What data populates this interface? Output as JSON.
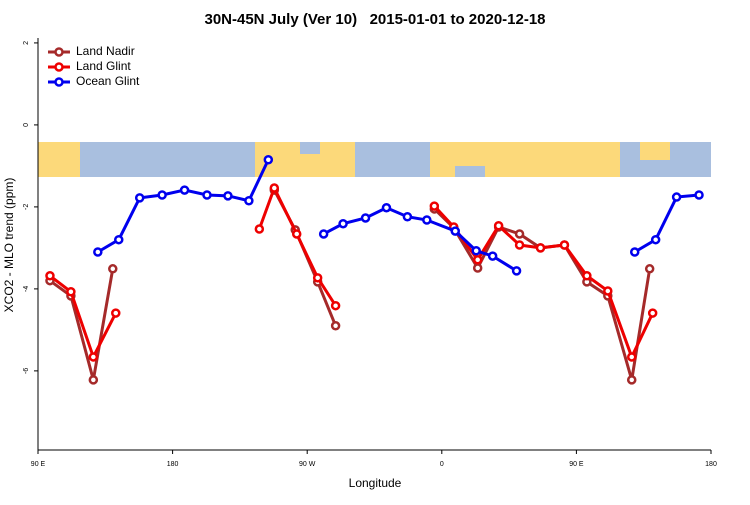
{
  "chart_data": {
    "type": "line",
    "title": "30N-45N July (Ver 10)   2015-01-01 to 2020-12-18",
    "xlabel": "Longitude",
    "ylabel": "XCO2 - MLO trend (ppm)",
    "xlim": [
      90,
      540
    ],
    "xticks": [
      {
        "value": 90,
        "label": "90 E"
      },
      180,
      {
        "value": 270,
        "label": "90 W"
      },
      {
        "value": 360,
        "label": "0"
      },
      {
        "value": 450,
        "label": "90 E"
      },
      {
        "value": 540,
        "label": "180"
      }
    ],
    "ylim": [
      -7.93,
      2.12
    ],
    "yticks": [
      2,
      0,
      -2,
      -4,
      -6
    ],
    "legend": "top-left",
    "series": [
      {
        "name": "Land Nadir",
        "color": "#a52a2a",
        "x": [
          98,
          112,
          127,
          140,
          null,
          248,
          262,
          277,
          289,
          null,
          355,
          368,
          384,
          398,
          412,
          426,
          442,
          457,
          471,
          487,
          499
        ],
        "values": [
          -3.8,
          -4.17,
          -6.22,
          -3.51,
          null,
          -1.59,
          -2.56,
          -3.83,
          -4.9,
          null,
          -2.05,
          -2.51,
          -3.49,
          -2.49,
          -2.66,
          -3.0,
          -2.93,
          -3.83,
          -4.17,
          -6.22,
          -3.51
        ]
      },
      {
        "name": "Land Glint",
        "color": "#ee0000",
        "x": [
          98,
          112,
          127,
          142,
          null,
          238,
          248,
          263,
          277,
          289,
          null,
          355,
          368,
          384,
          398,
          412,
          426,
          442,
          457,
          471,
          487,
          501
        ],
        "values": [
          -3.68,
          -4.07,
          -5.66,
          -4.59,
          null,
          -2.54,
          -1.54,
          -2.66,
          -3.73,
          -4.41,
          null,
          -1.98,
          -2.49,
          -3.29,
          -2.46,
          -2.93,
          -3.0,
          -2.93,
          -3.68,
          -4.05,
          -5.66,
          -4.59
        ]
      },
      {
        "name": "Ocean Glint",
        "color": "#0000ee",
        "x": [
          130,
          144,
          158,
          173,
          188,
          203,
          217,
          231,
          244,
          null,
          281,
          294,
          309,
          323,
          337,
          350,
          369,
          383,
          394,
          410,
          null,
          489,
          503,
          517,
          532
        ],
        "values": [
          -3.1,
          -2.8,
          -1.78,
          -1.71,
          -1.59,
          -1.71,
          -1.73,
          -1.85,
          -0.85,
          null,
          -2.66,
          -2.41,
          -2.27,
          -2.02,
          -2.24,
          -2.32,
          -2.59,
          -3.07,
          -3.2,
          -3.56,
          null,
          -3.1,
          -2.8,
          -1.76,
          -1.71
        ]
      }
    ]
  }
}
